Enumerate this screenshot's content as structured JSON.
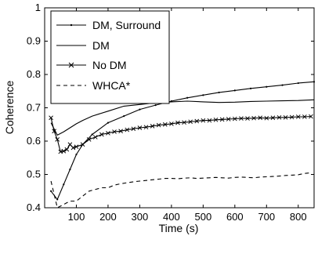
{
  "chart_data": {
    "type": "line",
    "xlabel": "Time (s)",
    "ylabel": "Coherence",
    "xlim": [
      0,
      850
    ],
    "ylim": [
      0.4,
      1.0
    ],
    "xticks": [
      100,
      200,
      300,
      400,
      500,
      600,
      700,
      800
    ],
    "yticks": [
      0.4,
      0.5,
      0.6,
      0.7,
      0.8,
      0.9,
      1
    ],
    "legend_position": "top-left",
    "grid": false,
    "series": [
      {
        "name": "DM, Surround",
        "style": "solid-dot-markers",
        "x": [
          20,
          40,
          60,
          80,
          100,
          120,
          150,
          200,
          250,
          300,
          350,
          400,
          450,
          500,
          550,
          600,
          650,
          700,
          750,
          800,
          850
        ],
        "y": [
          0.45,
          0.425,
          0.47,
          0.515,
          0.56,
          0.59,
          0.62,
          0.655,
          0.675,
          0.695,
          0.708,
          0.72,
          0.73,
          0.738,
          0.746,
          0.752,
          0.758,
          0.763,
          0.768,
          0.774,
          0.778
        ]
      },
      {
        "name": "DM",
        "style": "solid",
        "x": [
          20,
          40,
          60,
          80,
          100,
          120,
          150,
          200,
          250,
          300,
          350,
          400,
          450,
          500,
          550,
          600,
          650,
          700,
          750,
          800,
          850
        ],
        "y": [
          0.655,
          0.618,
          0.628,
          0.64,
          0.652,
          0.662,
          0.675,
          0.69,
          0.705,
          0.71,
          0.715,
          0.718,
          0.72,
          0.718,
          0.716,
          0.717,
          0.719,
          0.72,
          0.721,
          0.722,
          0.724
        ]
      },
      {
        "name": "No DM",
        "style": "solid-x-markers",
        "x": [
          20,
          30,
          40,
          50,
          60,
          70,
          80,
          90,
          100,
          120,
          140,
          160,
          180,
          200,
          220,
          240,
          260,
          280,
          300,
          320,
          340,
          360,
          380,
          400,
          420,
          440,
          460,
          480,
          500,
          520,
          540,
          560,
          580,
          600,
          620,
          640,
          660,
          680,
          700,
          720,
          740,
          760,
          780,
          800,
          820,
          840
        ],
        "y": [
          0.67,
          0.63,
          0.605,
          0.568,
          0.57,
          0.575,
          0.59,
          0.58,
          0.583,
          0.59,
          0.605,
          0.612,
          0.62,
          0.624,
          0.628,
          0.63,
          0.634,
          0.637,
          0.64,
          0.642,
          0.645,
          0.648,
          0.65,
          0.652,
          0.655,
          0.656,
          0.658,
          0.66,
          0.662,
          0.662,
          0.664,
          0.665,
          0.666,
          0.667,
          0.668,
          0.668,
          0.669,
          0.67,
          0.669,
          0.67,
          0.671,
          0.671,
          0.672,
          0.673,
          0.673,
          0.674
        ]
      },
      {
        "name": "WHCA*",
        "style": "dashed",
        "x": [
          20,
          40,
          60,
          80,
          100,
          120,
          140,
          160,
          180,
          200,
          220,
          240,
          260,
          280,
          300,
          320,
          340,
          360,
          380,
          400,
          420,
          440,
          460,
          480,
          500,
          520,
          540,
          560,
          580,
          600,
          620,
          640,
          660,
          680,
          700,
          720,
          740,
          760,
          780,
          800,
          820,
          840
        ],
        "y": [
          0.48,
          0.4,
          0.41,
          0.42,
          0.42,
          0.435,
          0.45,
          0.455,
          0.46,
          0.46,
          0.468,
          0.472,
          0.475,
          0.478,
          0.48,
          0.482,
          0.484,
          0.486,
          0.488,
          0.488,
          0.487,
          0.489,
          0.49,
          0.488,
          0.489,
          0.49,
          0.491,
          0.49,
          0.489,
          0.491,
          0.492,
          0.491,
          0.49,
          0.492,
          0.493,
          0.494,
          0.495,
          0.497,
          0.498,
          0.499,
          0.503,
          0.505
        ]
      }
    ]
  }
}
